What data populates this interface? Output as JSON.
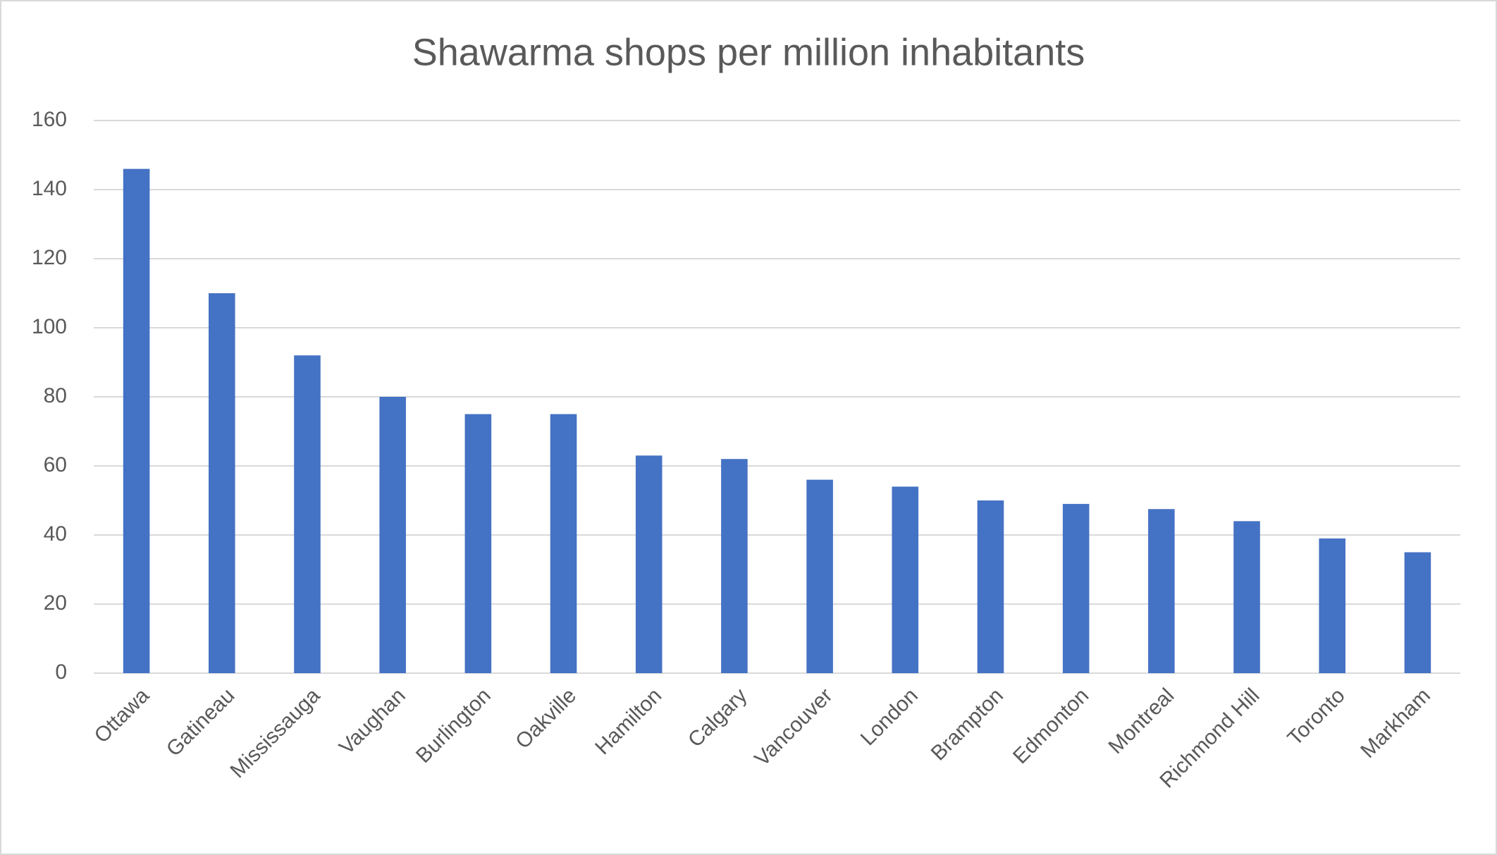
{
  "chart_data": {
    "type": "bar",
    "title": "Shawarma shops per million inhabitants",
    "categories": [
      "Ottawa",
      "Gatineau",
      "Mississauga",
      "Vaughan",
      "Burlington",
      "Oakville",
      "Hamilton",
      "Calgary",
      "Vancouver",
      "London",
      "Brampton",
      "Edmonton",
      "Montreal",
      "Richmond Hill",
      "Toronto",
      "Markham"
    ],
    "values": [
      146,
      110,
      92,
      80,
      75,
      75,
      63,
      62,
      56,
      54,
      50,
      49,
      47.5,
      44,
      39,
      35
    ],
    "color": "#4472c4",
    "ylim": [
      0,
      160
    ],
    "yticks": [
      0,
      20,
      40,
      60,
      80,
      100,
      120,
      140,
      160
    ],
    "grid": true
  }
}
